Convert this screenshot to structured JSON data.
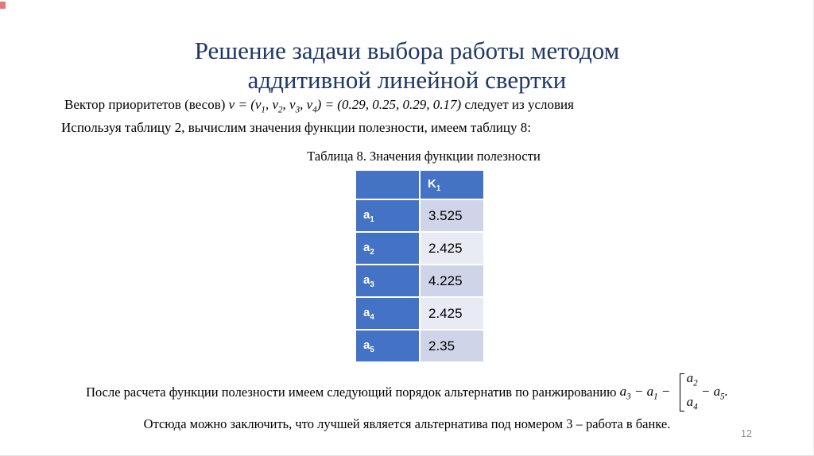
{
  "slide": {
    "page_number": "12",
    "colors": {
      "title_navy": "#1f3864",
      "table_blue": "#4472c4",
      "band_dark": "#cfd4e8",
      "band_light": "#e9ebf4",
      "corner_red": "#e07878",
      "page_number_gray": "#8f8f8f"
    },
    "title": {
      "line1": "Решение задачи выбора работы методом",
      "line2": "аддитивной линейной свертки"
    },
    "p1": {
      "prefix": "Вектор приоритетов (весов) ",
      "m1": "v = (v",
      "s1": "1",
      "m2": ", v",
      "s2": "2",
      "m3": ", v",
      "s3": "3",
      "m4": ", v",
      "s4": "4",
      "m5": ") = (0.29, 0.25, 0.29, 0.17)",
      "suffix": " следует из условия"
    },
    "p2": "Используя таблицу 2, вычислим значения функции полезности, имеем таблицу 8:",
    "table": {
      "caption": "Таблица 8. Значения функции полезности",
      "header": {
        "col1": "",
        "col2_base": "K",
        "col2_sub": "1"
      },
      "rows": [
        {
          "label_base": "a",
          "label_sub": "1",
          "value": "3.525"
        },
        {
          "label_base": "a",
          "label_sub": "2",
          "value": "2.425"
        },
        {
          "label_base": "a",
          "label_sub": "3",
          "value": "4.225"
        },
        {
          "label_base": "a",
          "label_sub": "4",
          "value": "2.425"
        },
        {
          "label_base": "a",
          "label_sub": "5",
          "value": "2.35"
        }
      ]
    },
    "rank": {
      "prefix": "После расчета функции полезности имеем следующий порядок альтернатив по ранжированию ",
      "t1b": "a",
      "t1s": "3",
      "d1": " − ",
      "t2b": "a",
      "t2s": "1",
      "d2": " − ",
      "topb": "a",
      "tops": "2",
      "botb": "a",
      "bots": "4",
      "d3": " − ",
      "t3b": "a",
      "t3s": "5",
      "end": "."
    },
    "conclusion": "Отсюда можно заключить, что лучшей является альтернатива под номером 3 – работа в банке."
  }
}
